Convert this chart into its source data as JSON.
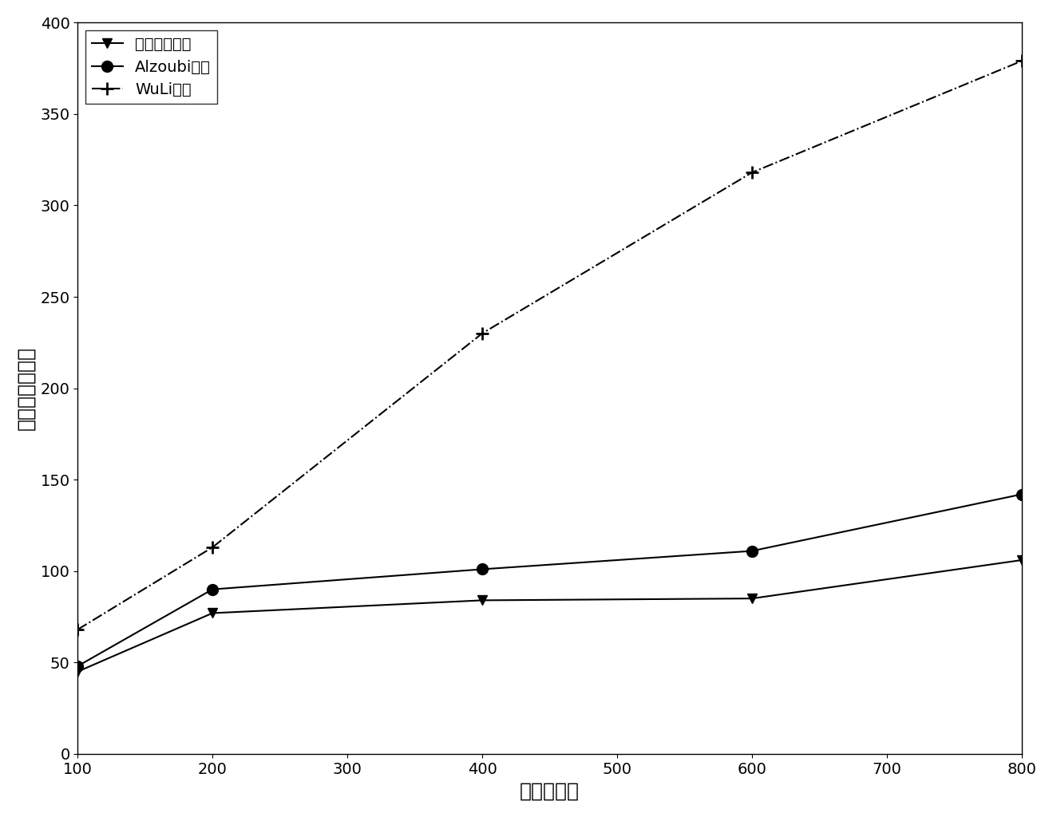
{
  "x": [
    100,
    200,
    400,
    600,
    800
  ],
  "series1_y": [
    45,
    77,
    84,
    85,
    106
  ],
  "series2_y": [
    48,
    90,
    101,
    111,
    142
  ],
  "series3_y": [
    68,
    113,
    230,
    318,
    379
  ],
  "series1_label": "本发明的方法",
  "series2_label": "Alzoubi方法",
  "series3_label": "WuLi方法",
  "xlabel": "网络节点数",
  "ylabel": "虚拟骨干网规模",
  "xlim": [
    100,
    800
  ],
  "ylim": [
    0,
    400
  ],
  "xticks": [
    100,
    200,
    300,
    400,
    500,
    600,
    700,
    800
  ],
  "yticks": [
    0,
    50,
    100,
    150,
    200,
    250,
    300,
    350,
    400
  ],
  "line_color": "#000000",
  "bg_color": "#ffffff",
  "fontsize_label": 18,
  "fontsize_tick": 14,
  "fontsize_legend": 14
}
